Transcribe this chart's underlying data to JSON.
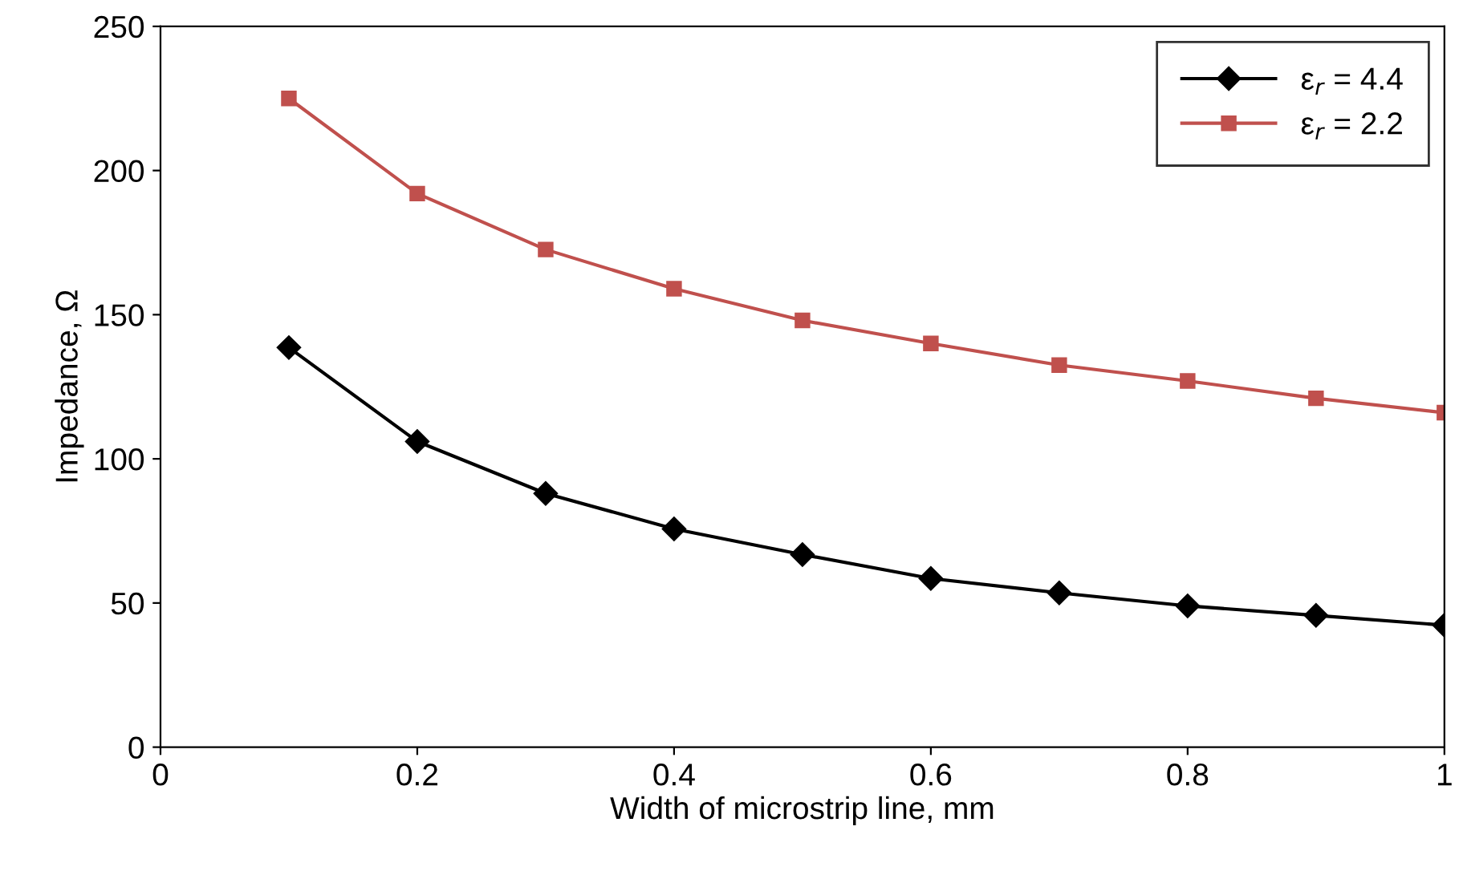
{
  "chart_data": {
    "type": "line",
    "xlabel": "Width of microstrip line, mm",
    "ylabel": "Impedance, Ω",
    "x": [
      0.1,
      0.2,
      0.3,
      0.4,
      0.5,
      0.6,
      0.7,
      0.8,
      0.9,
      1.0
    ],
    "series": [
      {
        "name": "ε$_{r}$ = 4.4",
        "color": "#000000",
        "marker": "diamond",
        "values": [
          138.6,
          106,
          88,
          75.7,
          66.8,
          58.5,
          53.5,
          49,
          45.7,
          42.3
        ]
      },
      {
        "name": "ε$_{r}$ = 2.2",
        "color": "#c0504d",
        "marker": "square",
        "values": [
          225,
          192,
          172.6,
          159,
          148,
          140,
          132.5,
          127,
          121,
          116
        ]
      }
    ],
    "xlim": [
      0,
      1
    ],
    "xticks": [
      0,
      0.2,
      0.4,
      0.6,
      0.8,
      1
    ],
    "ylim": [
      0,
      250
    ],
    "yticks": [
      0,
      50,
      100,
      150,
      200,
      250
    ],
    "grid": false,
    "legend": "top right",
    "line_style": "solid"
  }
}
